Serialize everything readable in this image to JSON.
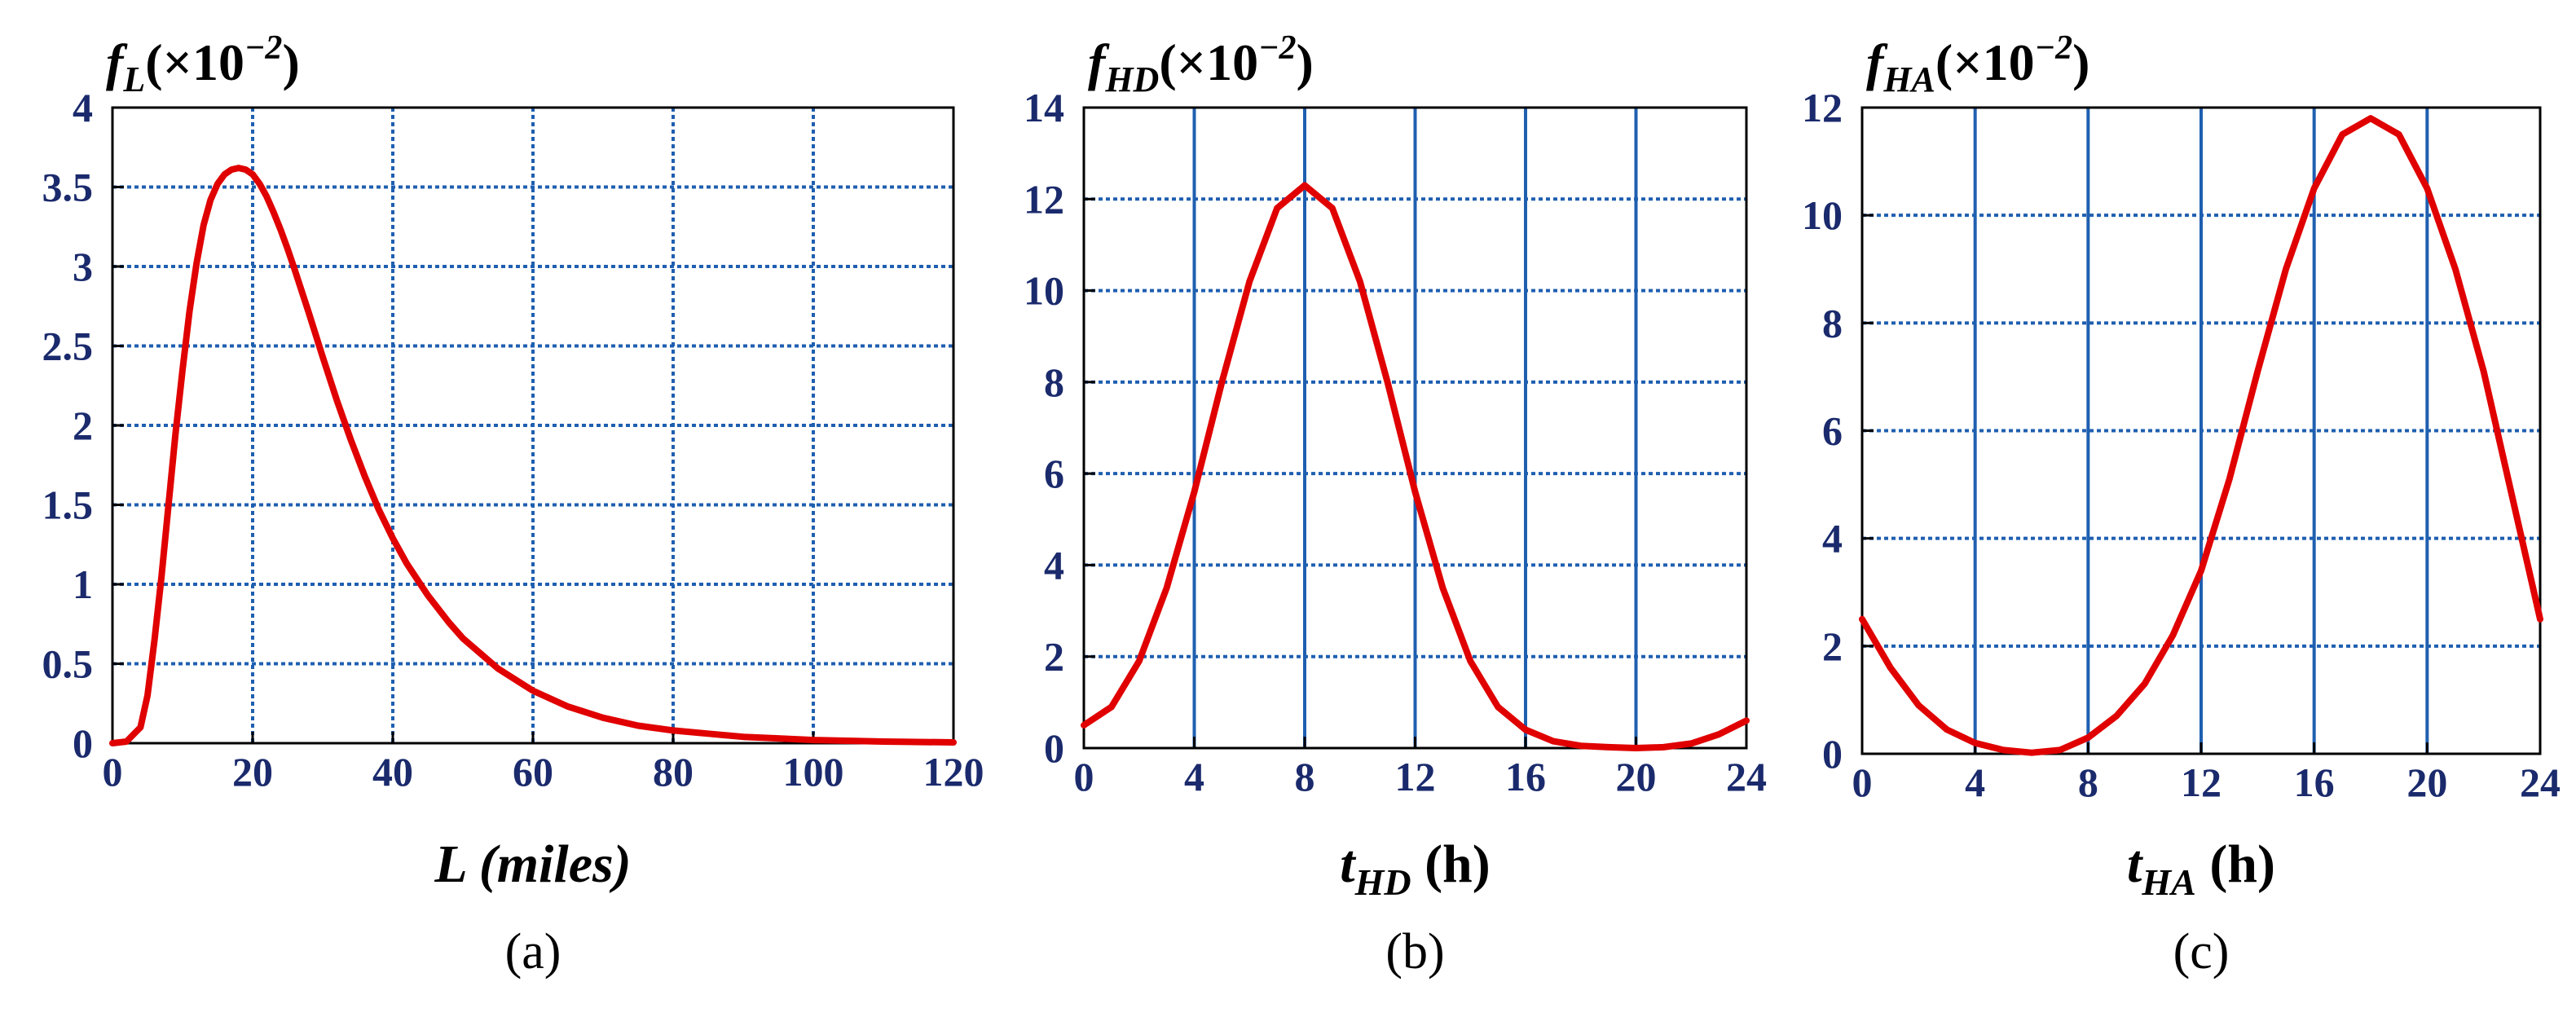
{
  "colors": {
    "grid": "#1f5fb0",
    "tick_label": "#1a2a6c",
    "curve": "#e00000",
    "axis": "#000000"
  },
  "chart_data": [
    {
      "type": "line",
      "panel_label": "(a)",
      "ylabel": {
        "main": "f",
        "sub": "L",
        "suffix": "(×10",
        "exp": "−2",
        "close": ")"
      },
      "xlabel": {
        "main": "L (miles)",
        "sub": "",
        "suffix": ""
      },
      "xlim": [
        0,
        120
      ],
      "ylim": [
        0,
        4
      ],
      "x_ticks": [
        0,
        20,
        40,
        60,
        80,
        100,
        120
      ],
      "x_tick_labels": [
        "0",
        "20",
        "40",
        "60",
        "80",
        "100",
        "120"
      ],
      "y_ticks": [
        0,
        0.5,
        1,
        1.5,
        2,
        2.5,
        3,
        3.5,
        4
      ],
      "y_tick_labels": [
        "0",
        "0.5",
        "1",
        "1.5",
        "2",
        "2.5",
        "3",
        "3.5",
        "4"
      ],
      "grid": {
        "x_style": "dotted",
        "y_style": "dotted"
      },
      "series": [
        {
          "x": [
            0,
            2,
            4,
            5,
            6,
            7,
            8,
            9,
            10,
            11,
            12,
            13,
            14,
            15,
            16,
            17,
            18,
            19,
            20,
            21,
            22,
            23,
            24,
            25,
            26,
            28,
            30,
            32,
            34,
            36,
            38,
            40,
            42,
            45,
            48,
            50,
            55,
            60,
            65,
            70,
            75,
            80,
            85,
            90,
            95,
            100,
            110,
            120
          ],
          "y": [
            0,
            0.01,
            0.1,
            0.3,
            0.65,
            1.05,
            1.5,
            1.95,
            2.35,
            2.72,
            3.02,
            3.26,
            3.42,
            3.52,
            3.58,
            3.61,
            3.62,
            3.61,
            3.58,
            3.52,
            3.44,
            3.34,
            3.23,
            3.11,
            2.98,
            2.71,
            2.43,
            2.16,
            1.91,
            1.68,
            1.47,
            1.29,
            1.13,
            0.93,
            0.76,
            0.66,
            0.47,
            0.33,
            0.23,
            0.16,
            0.11,
            0.08,
            0.06,
            0.04,
            0.03,
            0.02,
            0.01,
            0.005
          ]
        }
      ]
    },
    {
      "type": "line",
      "panel_label": "(b)",
      "ylabel": {
        "main": "f",
        "sub": "HD",
        "suffix": "(×10",
        "exp": "−2",
        "close": ")"
      },
      "xlabel": {
        "main": "t",
        "sub": "HD",
        "suffix": " (h)"
      },
      "xlim": [
        0,
        24
      ],
      "ylim": [
        0,
        14
      ],
      "x_ticks": [
        0,
        4,
        8,
        12,
        16,
        20,
        24
      ],
      "x_tick_labels": [
        "0",
        "4",
        "8",
        "12",
        "16",
        "20",
        "24"
      ],
      "y_ticks": [
        0,
        2,
        4,
        6,
        8,
        10,
        12,
        14
      ],
      "y_tick_labels": [
        "0",
        "2",
        "4",
        "6",
        "8",
        "10",
        "12",
        "14"
      ],
      "grid": {
        "x_style": "solid",
        "y_style": "dotted"
      },
      "series": [
        {
          "x": [
            0,
            1,
            2,
            3,
            4,
            5,
            6,
            7,
            8,
            9,
            10,
            11,
            12,
            13,
            14,
            15,
            16,
            17,
            18,
            19,
            20,
            21,
            22,
            23,
            24
          ],
          "y": [
            0.5,
            0.9,
            1.9,
            3.5,
            5.6,
            8.0,
            10.2,
            11.8,
            12.3,
            11.8,
            10.2,
            8.0,
            5.6,
            3.5,
            1.9,
            0.9,
            0.4,
            0.15,
            0.05,
            0.02,
            0.0,
            0.02,
            0.1,
            0.3,
            0.6
          ]
        }
      ]
    },
    {
      "type": "line",
      "panel_label": "(c)",
      "ylabel": {
        "main": "f",
        "sub": "HA",
        "suffix": "(×10",
        "exp": "−2",
        "close": ")"
      },
      "xlabel": {
        "main": "t",
        "sub": "HA",
        "suffix": " (h)"
      },
      "xlim": [
        0,
        24
      ],
      "ylim": [
        0,
        12
      ],
      "x_ticks": [
        0,
        4,
        8,
        12,
        16,
        20,
        24
      ],
      "x_tick_labels": [
        "0",
        "4",
        "8",
        "12",
        "16",
        "20",
        "24"
      ],
      "y_ticks": [
        0,
        2,
        4,
        6,
        8,
        10,
        12
      ],
      "y_tick_labels": [
        "0",
        "2",
        "4",
        "6",
        "8",
        "10",
        "12"
      ],
      "grid": {
        "x_style": "solid",
        "y_style": "dotted"
      },
      "series": [
        {
          "x": [
            0,
            1,
            2,
            3,
            4,
            5,
            6,
            7,
            8,
            9,
            10,
            11,
            12,
            13,
            14,
            15,
            16,
            17,
            18,
            19,
            20,
            21,
            22,
            23,
            24
          ],
          "y": [
            2.5,
            1.6,
            0.9,
            0.45,
            0.2,
            0.07,
            0.02,
            0.07,
            0.3,
            0.7,
            1.3,
            2.2,
            3.4,
            5.1,
            7.1,
            9.0,
            10.5,
            11.5,
            11.8,
            11.5,
            10.5,
            9.0,
            7.1,
            4.8,
            2.5
          ]
        }
      ]
    }
  ]
}
